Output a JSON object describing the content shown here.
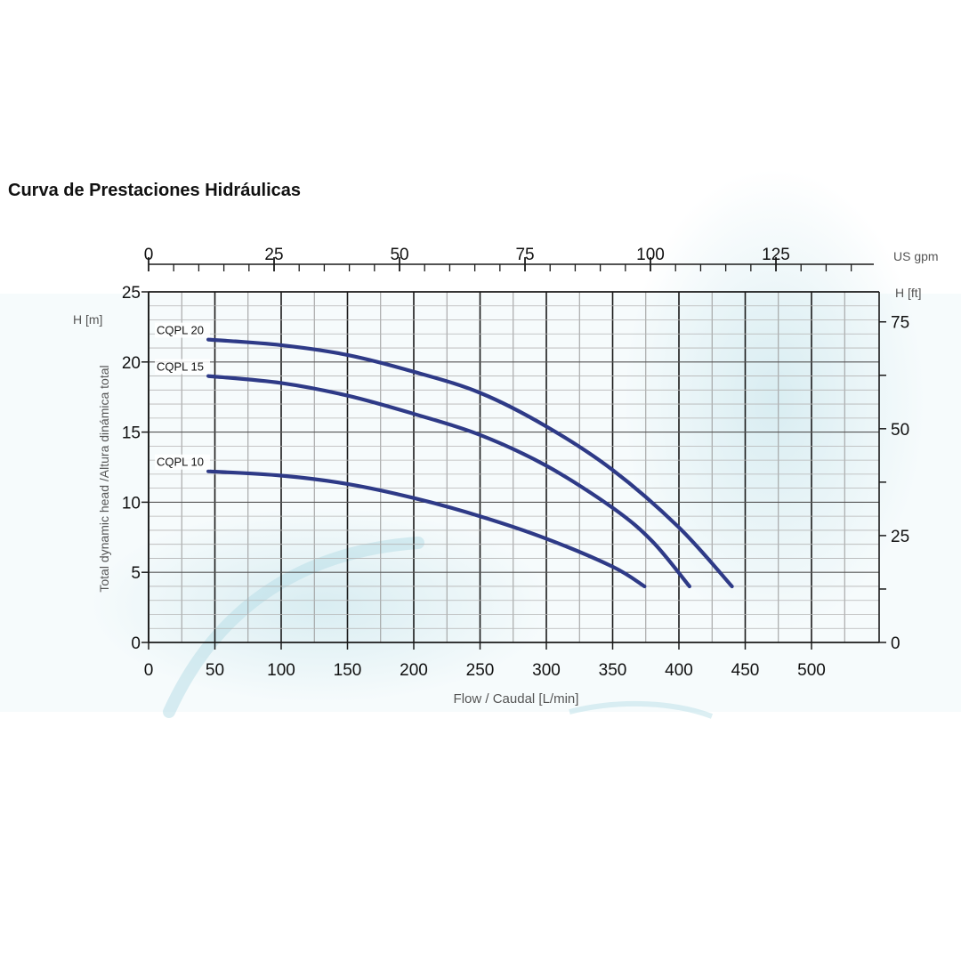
{
  "page_title": "Curva de Prestaciones Hidráulicas",
  "colors": {
    "curve": "#2e3a87",
    "major_grid": "#1a1a1a",
    "minor_grid": "#9a9a9a",
    "text": "#111111",
    "label_grey": "#555555",
    "background_swirl": "#d9eef2"
  },
  "chart_data": {
    "type": "line",
    "title": "Curva de Prestaciones Hidráulicas",
    "xlabel": "Flow / Caudal [L/min]",
    "ylabel": "Total dynamic head /Altura dinámica total",
    "left_axis_unit": "H [m]",
    "right_axis_unit": "H  [ft]",
    "top_axis_unit": "US gpm",
    "xlim": [
      0,
      550
    ],
    "ylim": [
      0,
      25
    ],
    "x_ticks": [
      "0",
      "50",
      "100",
      "150",
      "200",
      "250",
      "300",
      "350",
      "400",
      "450",
      "500"
    ],
    "y_ticks": [
      "0",
      "5",
      "10",
      "15",
      "20",
      "25"
    ],
    "top_ticks": [
      "0",
      "25",
      "50",
      "75",
      "100",
      "125"
    ],
    "right_ticks": [
      "0",
      "25",
      "50",
      "75"
    ],
    "grid": true,
    "series": [
      {
        "name": "CQPL 20",
        "x": [
          45,
          100,
          150,
          200,
          250,
          300,
          350,
          400,
          440
        ],
        "y": [
          21.6,
          21.2,
          20.5,
          19.3,
          17.8,
          15.4,
          12.3,
          8.2,
          4.0
        ]
      },
      {
        "name": "CQPL 15",
        "x": [
          45,
          100,
          150,
          200,
          250,
          300,
          350,
          380,
          408
        ],
        "y": [
          19.0,
          18.5,
          17.6,
          16.3,
          14.8,
          12.6,
          9.6,
          7.2,
          4.0
        ]
      },
      {
        "name": "CQPL 10",
        "x": [
          45,
          100,
          150,
          200,
          250,
          300,
          350,
          374
        ],
        "y": [
          12.2,
          11.9,
          11.3,
          10.3,
          9.0,
          7.4,
          5.4,
          4.0
        ]
      }
    ]
  }
}
